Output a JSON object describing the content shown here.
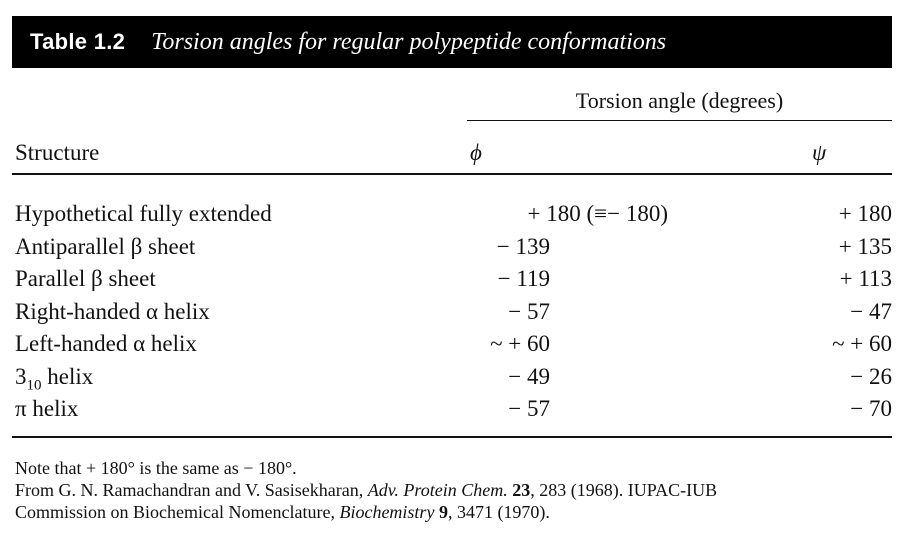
{
  "header": {
    "table_number": "Table 1.2",
    "title": "Torsion angles for regular polypeptide conformations"
  },
  "columns": {
    "group_header": "Torsion angle (degrees)",
    "structure": "Structure",
    "phi": "ϕ",
    "psi": "ψ"
  },
  "rows": [
    {
      "structure": "Hypothetical fully extended",
      "phi": "+ 180 (≡− 180)",
      "psi": "+ 180"
    },
    {
      "structure": "Antiparallel β sheet",
      "phi": "− 139",
      "psi": "+ 135"
    },
    {
      "structure": "Parallel β sheet",
      "phi": "− 119",
      "psi": "+ 113"
    },
    {
      "structure": "Right-handed α helix",
      "phi": "− 57",
      "psi": "− 47"
    },
    {
      "structure": "Left-handed α helix",
      "phi": "~ + 60",
      "psi": "~ + 60"
    },
    {
      "structure_base": "3",
      "structure_sub": "10",
      "structure_rest": " helix",
      "phi": "− 49",
      "psi": "− 26"
    },
    {
      "structure": "π helix",
      "phi": "− 57",
      "psi": "− 70"
    }
  ],
  "notes": {
    "note": "Note that + 180° is the same as − 180°.",
    "ref1_pre": "From G. N. Ramachandran and V. Sasisekharan, ",
    "ref1_journal": "Adv. Protein Chem.",
    "ref1_vol": "23",
    "ref1_post": ", 283 (1968). IUPAC-IUB",
    "ref2_pre": "Commission on Biochemical Nomenclature, ",
    "ref2_journal": "Biochemistry",
    "ref2_vol": "9",
    "ref2_post": ", 3471 (1970)."
  }
}
